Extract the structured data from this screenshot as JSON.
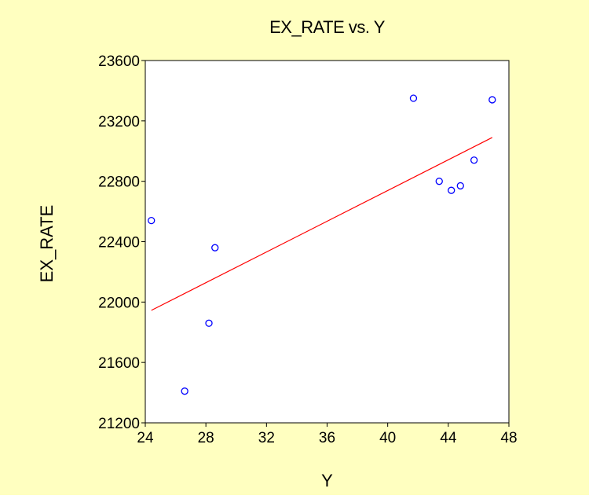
{
  "chart_data": {
    "type": "scatter",
    "title": "EX_RATE vs. Y",
    "xlabel": "Y",
    "ylabel": "EX_RATE",
    "xlim": [
      24,
      48
    ],
    "ylim": [
      21200,
      23600
    ],
    "x_ticks": [
      24,
      28,
      32,
      36,
      40,
      44,
      48
    ],
    "y_ticks": [
      21200,
      21600,
      22000,
      22400,
      22800,
      23200,
      23600
    ],
    "grid": false,
    "legend": "none",
    "series": [
      {
        "marker": "circle",
        "color": "#0000ff",
        "points": [
          {
            "x": 24.4,
            "y": 22540
          },
          {
            "x": 26.6,
            "y": 21410
          },
          {
            "x": 28.2,
            "y": 21860
          },
          {
            "x": 28.6,
            "y": 22360
          },
          {
            "x": 41.7,
            "y": 23350
          },
          {
            "x": 43.4,
            "y": 22800
          },
          {
            "x": 44.2,
            "y": 22740
          },
          {
            "x": 44.8,
            "y": 22770
          },
          {
            "x": 45.7,
            "y": 22940
          },
          {
            "x": 46.9,
            "y": 23340
          }
        ]
      }
    ],
    "fit_line": {
      "color": "#ff0000",
      "from": {
        "x": 24.4,
        "y": 21945
      },
      "to": {
        "x": 46.9,
        "y": 23090
      }
    }
  }
}
